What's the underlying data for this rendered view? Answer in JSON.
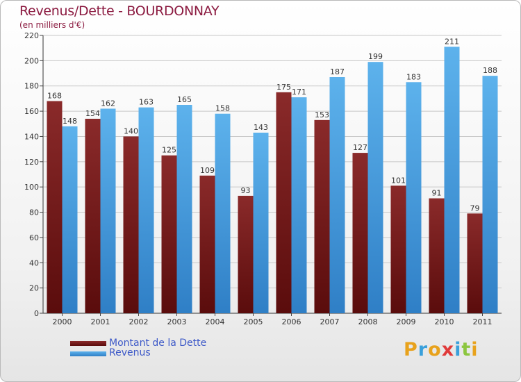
{
  "chart_data": {
    "type": "bar",
    "title": "Revenus/Dette - BOURDONNAY",
    "subtitle": "(en milliers d'€)",
    "categories": [
      "2000",
      "2001",
      "2002",
      "2003",
      "2004",
      "2005",
      "2006",
      "2007",
      "2008",
      "2009",
      "2010",
      "2011"
    ],
    "series": [
      {
        "name": "Montant de la Dette",
        "values": [
          168,
          154,
          140,
          125,
          109,
          93,
          175,
          153,
          127,
          101,
          91,
          79
        ],
        "color": "#7a2020"
      },
      {
        "name": "Revenus",
        "values": [
          148,
          162,
          163,
          165,
          158,
          143,
          171,
          187,
          199,
          183,
          211,
          188
        ],
        "color": "#4fa3e3"
      }
    ],
    "ylim": [
      0,
      220
    ],
    "yticks": [
      0,
      20,
      40,
      60,
      80,
      100,
      120,
      140,
      160,
      180,
      200,
      220
    ],
    "grid": true,
    "xlabel": "",
    "ylabel": ""
  },
  "logo": {
    "text": "Proxiti",
    "letters": [
      "P",
      "r",
      "o",
      "x",
      "i",
      "t",
      "i"
    ],
    "colors": [
      "#e8a21c",
      "#3aa0db",
      "#e8a21c",
      "#e03a3a",
      "#3aa0db",
      "#8cc63f",
      "#e8a21c"
    ]
  }
}
